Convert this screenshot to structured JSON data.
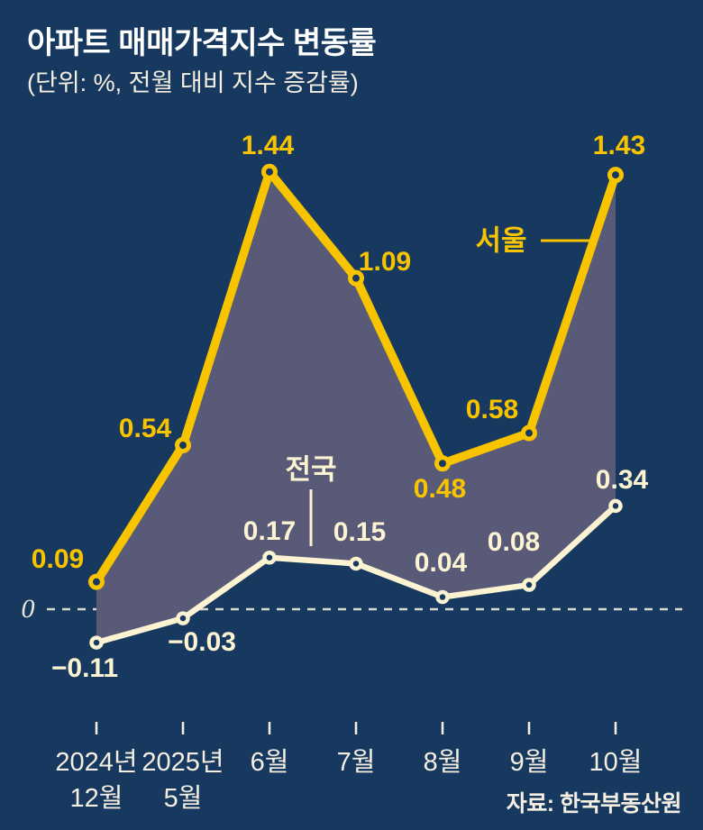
{
  "title": "아파트 매매가격지수 변동률",
  "subtitle": "(단위: %, 전월 대비 지수 증감률)",
  "source": "자료: 한국부동산원",
  "zero_label": "0",
  "colors": {
    "background": "#18395F",
    "seoul_line": "#F8C400",
    "national_line": "#FBF3D2",
    "area_fill": "#585A78",
    "zero_line": "#D8D8CE",
    "axis_text": "#F4EFE2",
    "title_text": "#FFFFFF"
  },
  "chart_data": {
    "type": "line",
    "title": "아파트 매매가격지수 변동률",
    "unit_note": "(단위: %, 전월 대비 지수 증감률)",
    "x_tick_labels": [
      [
        "2024년",
        "12월"
      ],
      [
        "2025년",
        "5월"
      ],
      [
        "6월"
      ],
      [
        "7월"
      ],
      [
        "8월"
      ],
      [
        "9월"
      ],
      [
        "10월"
      ]
    ],
    "series": [
      {
        "name": "서울",
        "color_key": "seoul_line",
        "values": [
          0.09,
          0.54,
          1.44,
          1.09,
          0.48,
          0.58,
          1.43
        ],
        "labels": [
          "0.09",
          "0.54",
          "1.44",
          "1.09",
          "0.48",
          "0.58",
          "1.43"
        ]
      },
      {
        "name": "전국",
        "color_key": "national_line",
        "values": [
          -0.11,
          -0.03,
          0.17,
          0.15,
          0.04,
          0.08,
          0.34
        ],
        "labels": [
          "−0.11",
          "−0.03",
          "0.17",
          "0.15",
          "0.04",
          "0.08",
          "0.34"
        ]
      }
    ],
    "ylim": [
      -0.3,
      1.6
    ],
    "zero_line_dashed": true,
    "area_between_series": true,
    "grid": false,
    "legend_position": "inline-annotations",
    "source": "자료: 한국부동산원"
  }
}
